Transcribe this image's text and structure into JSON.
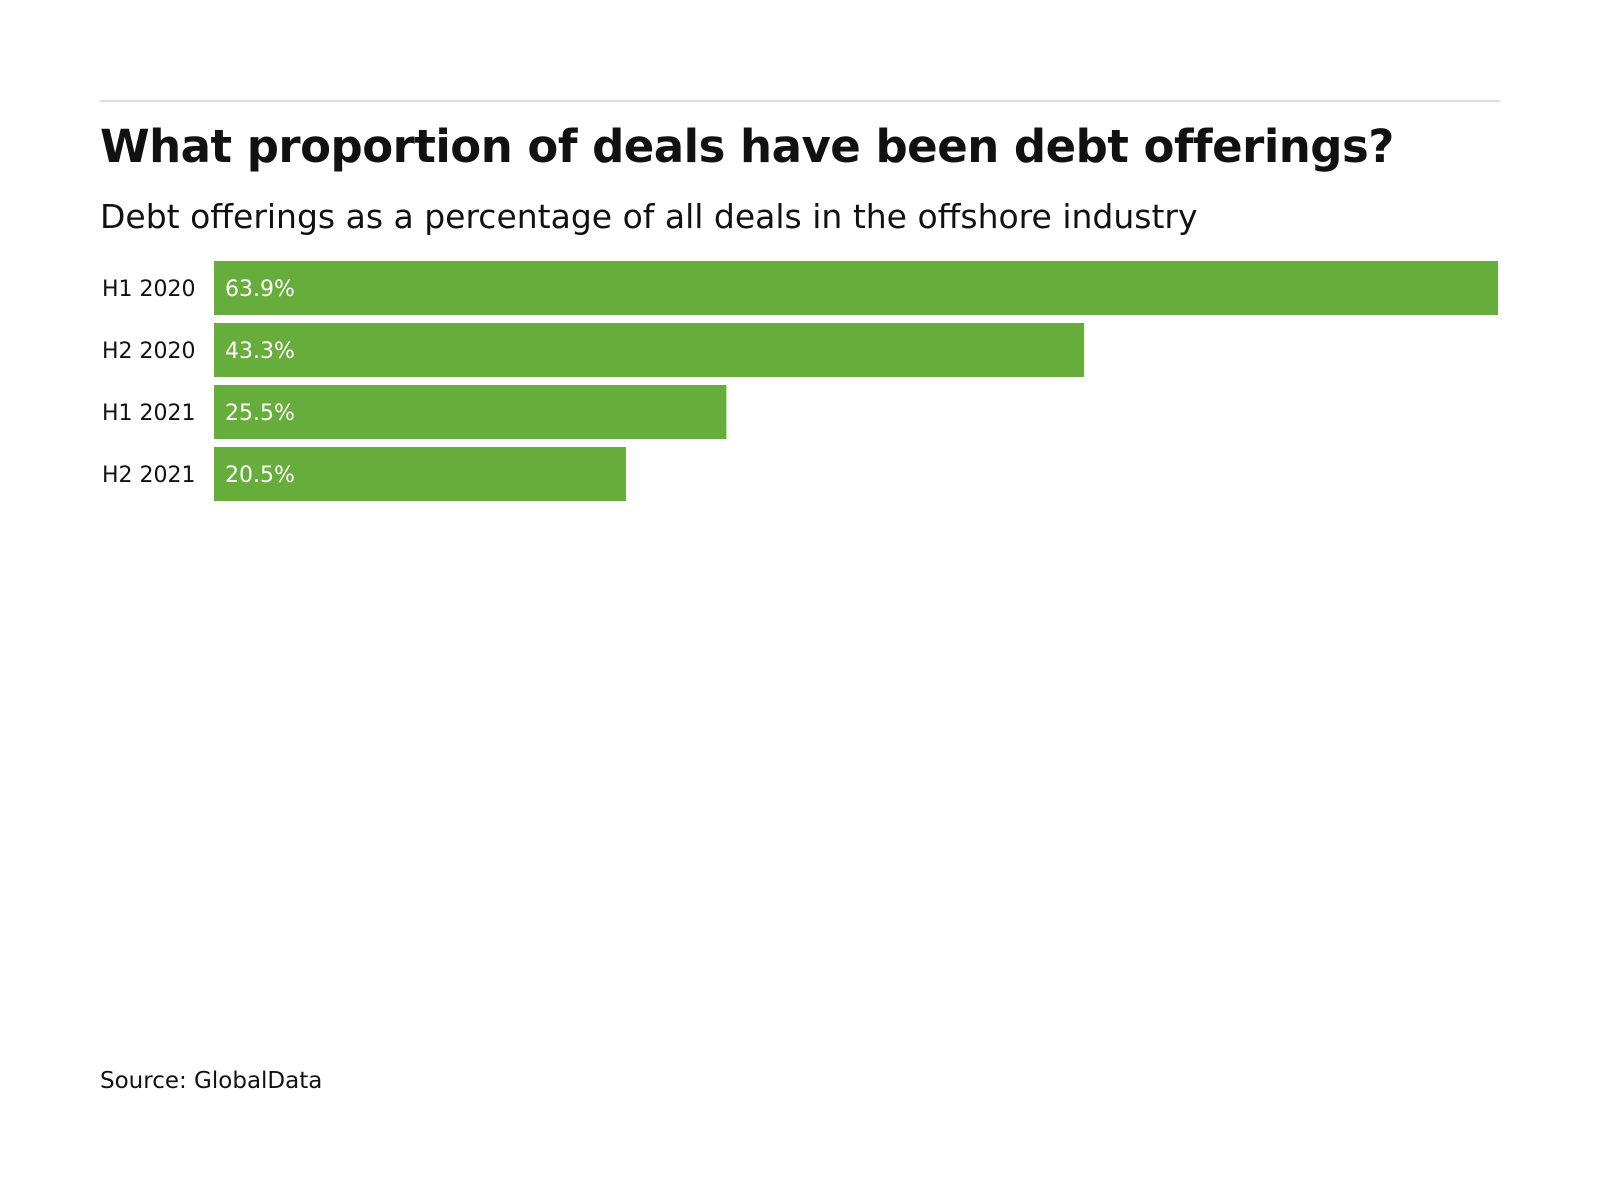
{
  "title": "What proportion of deals have been debt offerings?",
  "subtitle": "Debt offerings as a percentage of all deals in the offshore industry",
  "source": "Source: GlobalData",
  "chart_data": {
    "type": "bar",
    "orientation": "horizontal",
    "categories": [
      "H1 2020",
      "H2 2020",
      "H1 2021",
      "H2 2021"
    ],
    "values": [
      63.9,
      43.3,
      25.5,
      20.5
    ],
    "value_labels": [
      "63.9%",
      "43.3%",
      "25.5%",
      "20.5%"
    ],
    "unit": "%",
    "bar_color": "#67ad3c",
    "grid": false,
    "legend": "none"
  }
}
